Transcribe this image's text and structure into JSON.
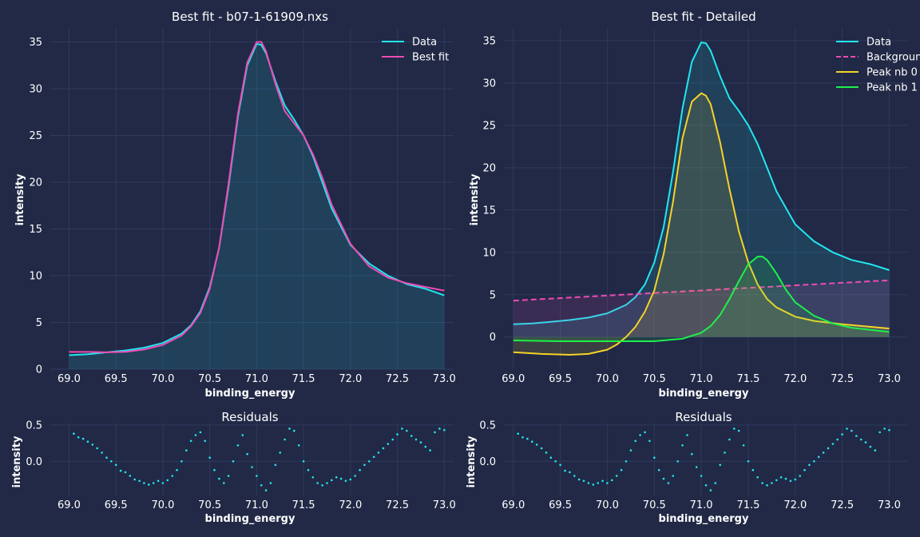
{
  "colors": {
    "background": "#212946",
    "grid": "#2e3a5c",
    "data": "#22e6f0",
    "best_fit": "#ee4bb4",
    "background_line": "#ee4bb4",
    "peak0": "#f5d327",
    "peak1": "#1ef04b"
  },
  "chart_data": [
    {
      "id": "best_fit",
      "type": "line",
      "title": "Best fit - b07-1-61909.nxs",
      "xlabel": "binding_energy",
      "ylabel": "intensity",
      "xlim": [
        68.8,
        73.1
      ],
      "ylim": [
        0,
        36.5
      ],
      "x_ticks": [
        "69.0",
        "69.5",
        "70.0",
        "70.5",
        "71.0",
        "71.5",
        "72.0",
        "72.5",
        "73.0"
      ],
      "y_ticks": [
        "0",
        "5",
        "10",
        "15",
        "20",
        "25",
        "30",
        "35"
      ],
      "legend_position": "top-right",
      "grid": true,
      "series": [
        {
          "name": "Data",
          "color": "#22e6f0",
          "fill": true,
          "x": [
            69.0,
            69.2,
            69.4,
            69.6,
            69.8,
            70.0,
            70.2,
            70.3,
            70.4,
            70.5,
            70.6,
            70.7,
            70.8,
            70.9,
            71.0,
            71.05,
            71.1,
            71.2,
            71.3,
            71.4,
            71.5,
            71.6,
            71.7,
            71.8,
            72.0,
            72.2,
            72.4,
            72.6,
            72.8,
            73.0
          ],
          "y": [
            1.5,
            1.6,
            1.8,
            2.0,
            2.3,
            2.8,
            3.8,
            4.7,
            6.2,
            8.8,
            13.0,
            19.5,
            27.0,
            32.5,
            34.8,
            34.7,
            33.8,
            30.8,
            28.2,
            26.7,
            25.0,
            22.8,
            20.0,
            17.2,
            13.3,
            11.3,
            10.0,
            9.1,
            8.6,
            7.9
          ]
        },
        {
          "name": "Best fit",
          "color": "#ee4bb4",
          "fill": false,
          "x": [
            69.0,
            69.2,
            69.4,
            69.6,
            69.8,
            70.0,
            70.2,
            70.3,
            70.4,
            70.5,
            70.6,
            70.7,
            70.8,
            70.9,
            71.0,
            71.05,
            71.1,
            71.2,
            71.3,
            71.4,
            71.5,
            71.6,
            71.7,
            71.8,
            72.0,
            72.2,
            72.4,
            72.6,
            72.8,
            73.0
          ],
          "y": [
            1.85,
            1.85,
            1.8,
            1.85,
            2.1,
            2.6,
            3.6,
            4.6,
            6.0,
            8.6,
            13.0,
            19.8,
            27.3,
            32.8,
            35.0,
            35.0,
            34.0,
            30.5,
            27.6,
            26.3,
            25.0,
            23.0,
            20.5,
            17.6,
            13.4,
            11.0,
            9.8,
            9.2,
            8.8,
            8.4
          ]
        }
      ]
    },
    {
      "id": "detailed",
      "type": "line",
      "title": "Best fit - Detailed",
      "xlabel": "binding_energy",
      "ylabel": "intensity",
      "xlim": [
        68.9,
        73.2
      ],
      "ylim": [
        -3.8,
        36.5
      ],
      "x_ticks": [
        "69.0",
        "69.5",
        "70.0",
        "70.5",
        "71.0",
        "71.5",
        "72.0",
        "72.5",
        "73.0"
      ],
      "y_ticks": [
        "0",
        "5",
        "10",
        "15",
        "20",
        "25",
        "30",
        "35"
      ],
      "legend_position": "top-right",
      "grid": true,
      "series": [
        {
          "name": "Data",
          "color": "#22e6f0",
          "fill": true,
          "x": [
            69.0,
            69.2,
            69.4,
            69.6,
            69.8,
            70.0,
            70.2,
            70.3,
            70.4,
            70.5,
            70.6,
            70.7,
            70.8,
            70.9,
            71.0,
            71.05,
            71.1,
            71.2,
            71.3,
            71.4,
            71.5,
            71.6,
            71.7,
            71.8,
            72.0,
            72.2,
            72.4,
            72.6,
            72.8,
            73.0
          ],
          "y": [
            1.5,
            1.6,
            1.8,
            2.0,
            2.3,
            2.8,
            3.8,
            4.7,
            6.2,
            8.8,
            13.0,
            19.5,
            27.0,
            32.5,
            34.8,
            34.7,
            33.8,
            30.8,
            28.2,
            26.7,
            25.0,
            22.8,
            20.0,
            17.2,
            13.3,
            11.3,
            10.0,
            9.1,
            8.6,
            7.9
          ]
        },
        {
          "name": "Background",
          "color": "#ee4bb4",
          "dashed": true,
          "fill": true,
          "x": [
            69.0,
            73.0
          ],
          "y": [
            4.3,
            6.7
          ]
        },
        {
          "name": "Peak nb 0",
          "color": "#f5d327",
          "fill": true,
          "x": [
            69.0,
            69.3,
            69.6,
            69.8,
            70.0,
            70.1,
            70.2,
            70.3,
            70.4,
            70.5,
            70.6,
            70.7,
            70.8,
            70.9,
            71.0,
            71.05,
            71.1,
            71.2,
            71.3,
            71.4,
            71.5,
            71.6,
            71.7,
            71.8,
            72.0,
            72.2,
            72.5,
            73.0
          ],
          "y": [
            -1.8,
            -2.0,
            -2.1,
            -2.0,
            -1.5,
            -0.9,
            0.0,
            1.2,
            3.0,
            5.5,
            9.8,
            16.0,
            23.5,
            27.8,
            28.8,
            28.5,
            27.5,
            23.0,
            17.5,
            12.5,
            8.8,
            6.2,
            4.5,
            3.5,
            2.4,
            1.9,
            1.5,
            1.0
          ]
        },
        {
          "name": "Peak nb 1",
          "color": "#1ef04b",
          "fill": true,
          "x": [
            69.0,
            69.5,
            70.0,
            70.5,
            70.8,
            71.0,
            71.1,
            71.2,
            71.3,
            71.4,
            71.5,
            71.6,
            71.65,
            71.7,
            71.8,
            71.9,
            72.0,
            72.2,
            72.4,
            72.6,
            73.0
          ],
          "y": [
            -0.4,
            -0.5,
            -0.5,
            -0.5,
            -0.2,
            0.5,
            1.3,
            2.6,
            4.5,
            6.6,
            8.6,
            9.5,
            9.5,
            9.1,
            7.5,
            5.6,
            4.1,
            2.5,
            1.6,
            1.1,
            0.6
          ]
        }
      ]
    },
    {
      "id": "residuals_left",
      "type": "scatter",
      "title": "Residuals",
      "xlabel": "binding_energy",
      "ylabel": "intensity",
      "xlim": [
        68.8,
        73.1
      ],
      "ylim": [
        -0.47,
        0.52
      ],
      "x_ticks": [
        "69.0",
        "69.5",
        "70.0",
        "70.5",
        "71.0",
        "71.5",
        "72.0",
        "72.5",
        "73.0"
      ],
      "y_ticks": [
        "0.5",
        "0.0"
      ],
      "grid": true,
      "series": [
        {
          "name": "",
          "color": "#22e6f0",
          "x": [
            69.05,
            69.1,
            69.15,
            69.2,
            69.25,
            69.3,
            69.35,
            69.4,
            69.45,
            69.5,
            69.55,
            69.6,
            69.65,
            69.7,
            69.75,
            69.8,
            69.85,
            69.9,
            69.95,
            70.0,
            70.05,
            70.1,
            70.15,
            70.2,
            70.25,
            70.3,
            70.35,
            70.4,
            70.45,
            70.5,
            70.55,
            70.6,
            70.65,
            70.7,
            70.75,
            70.8,
            70.85,
            70.9,
            70.95,
            71.0,
            71.05,
            71.1,
            71.15,
            71.2,
            71.25,
            71.3,
            71.35,
            71.4,
            71.45,
            71.5,
            71.55,
            71.6,
            71.65,
            71.7,
            71.75,
            71.8,
            71.85,
            71.9,
            71.95,
            72.0,
            72.05,
            72.1,
            72.15,
            72.2,
            72.25,
            72.3,
            72.35,
            72.4,
            72.45,
            72.5,
            72.55,
            72.6,
            72.65,
            72.7,
            72.75,
            72.8,
            72.85,
            72.9,
            72.95,
            73.0
          ],
          "y": [
            0.38,
            0.33,
            0.31,
            0.27,
            0.23,
            0.18,
            0.12,
            0.05,
            0.0,
            -0.05,
            -0.13,
            -0.15,
            -0.2,
            -0.25,
            -0.27,
            -0.3,
            -0.32,
            -0.3,
            -0.27,
            -0.3,
            -0.26,
            -0.2,
            -0.12,
            0.0,
            0.15,
            0.28,
            0.36,
            0.4,
            0.28,
            0.05,
            -0.12,
            -0.24,
            -0.3,
            -0.2,
            0.0,
            0.22,
            0.36,
            0.1,
            -0.08,
            -0.2,
            -0.33,
            -0.4,
            -0.3,
            -0.05,
            0.12,
            0.3,
            0.45,
            0.42,
            0.22,
            0.0,
            -0.12,
            -0.22,
            -0.3,
            -0.33,
            -0.3,
            -0.26,
            -0.22,
            -0.24,
            -0.27,
            -0.25,
            -0.2,
            -0.12,
            -0.05,
            0.0,
            0.06,
            0.12,
            0.18,
            0.24,
            0.3,
            0.37,
            0.45,
            0.42,
            0.35,
            0.3,
            0.26,
            0.2,
            0.15,
            0.4,
            0.45,
            0.43
          ]
        }
      ]
    },
    {
      "id": "residuals_right",
      "type": "scatter",
      "title": "Residuals",
      "xlabel": "binding_energy",
      "ylabel": "intensity",
      "xlim": [
        68.9,
        73.2
      ],
      "ylim": [
        -0.47,
        0.52
      ],
      "x_ticks": [
        "69.0",
        "69.5",
        "70.0",
        "70.5",
        "71.0",
        "71.5",
        "72.0",
        "72.5",
        "73.0"
      ],
      "y_ticks": [
        "0.5",
        "0.0"
      ],
      "grid": true,
      "series": [
        {
          "name": "",
          "color": "#22e6f0",
          "x": [
            69.05,
            69.1,
            69.15,
            69.2,
            69.25,
            69.3,
            69.35,
            69.4,
            69.45,
            69.5,
            69.55,
            69.6,
            69.65,
            69.7,
            69.75,
            69.8,
            69.85,
            69.9,
            69.95,
            70.0,
            70.05,
            70.1,
            70.15,
            70.2,
            70.25,
            70.3,
            70.35,
            70.4,
            70.45,
            70.5,
            70.55,
            70.6,
            70.65,
            70.7,
            70.75,
            70.8,
            70.85,
            70.9,
            70.95,
            71.0,
            71.05,
            71.1,
            71.15,
            71.2,
            71.25,
            71.3,
            71.35,
            71.4,
            71.45,
            71.5,
            71.55,
            71.6,
            71.65,
            71.7,
            71.75,
            71.8,
            71.85,
            71.9,
            71.95,
            72.0,
            72.05,
            72.1,
            72.15,
            72.2,
            72.25,
            72.3,
            72.35,
            72.4,
            72.45,
            72.5,
            72.55,
            72.6,
            72.65,
            72.7,
            72.75,
            72.8,
            72.85,
            72.9,
            72.95,
            73.0
          ],
          "y": [
            0.38,
            0.33,
            0.31,
            0.27,
            0.23,
            0.18,
            0.12,
            0.05,
            0.0,
            -0.05,
            -0.13,
            -0.15,
            -0.2,
            -0.25,
            -0.27,
            -0.3,
            -0.32,
            -0.3,
            -0.27,
            -0.3,
            -0.26,
            -0.2,
            -0.12,
            0.0,
            0.15,
            0.28,
            0.36,
            0.4,
            0.28,
            0.05,
            -0.12,
            -0.24,
            -0.3,
            -0.2,
            0.0,
            0.22,
            0.36,
            0.1,
            -0.08,
            -0.2,
            -0.33,
            -0.4,
            -0.3,
            -0.05,
            0.12,
            0.3,
            0.45,
            0.42,
            0.22,
            0.0,
            -0.12,
            -0.22,
            -0.3,
            -0.33,
            -0.3,
            -0.26,
            -0.22,
            -0.24,
            -0.27,
            -0.25,
            -0.2,
            -0.12,
            -0.05,
            0.0,
            0.06,
            0.12,
            0.18,
            0.24,
            0.3,
            0.37,
            0.45,
            0.42,
            0.35,
            0.3,
            0.26,
            0.2,
            0.15,
            0.4,
            0.45,
            0.43
          ]
        }
      ]
    }
  ]
}
